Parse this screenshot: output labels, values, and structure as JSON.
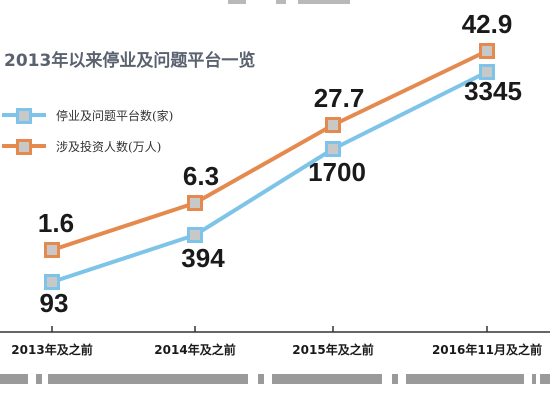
{
  "chart_data": {
    "type": "line",
    "title": "2013年以来停业及问题平台一览",
    "categories": [
      "2013年及之前",
      "2014年及之前",
      "2015年及之前",
      "2016年11月及之前"
    ],
    "series": [
      {
        "name": "停业及问题平台数(家)",
        "values": [
          93,
          394,
          1700,
          3345
        ],
        "color": "#7ec4e8"
      },
      {
        "name": "涉及投资人数(万人)",
        "values": [
          1.6,
          6.3,
          27.7,
          42.9
        ],
        "color": "#e58a4e"
      }
    ],
    "data_labels": {
      "platforms": [
        "93",
        "394",
        "1700",
        "3345"
      ],
      "investors": [
        "1.6",
        "6.3",
        "27.7",
        "42.9"
      ]
    },
    "legend_position": "top-left",
    "grid": false
  },
  "colors": {
    "marker_fill": "#c8c8c8",
    "label_text": "#1a1a1a",
    "axis": "#333333",
    "title": "#5a6270",
    "bottom_stripe": "#9a9a9a"
  }
}
